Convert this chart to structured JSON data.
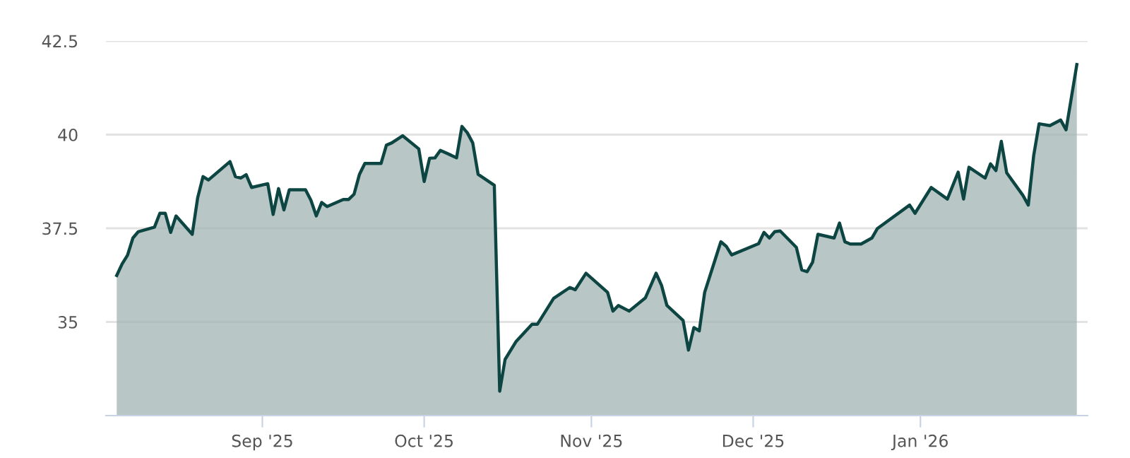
{
  "chart_data": {
    "type": "area",
    "grid": "y",
    "legend": false,
    "marker": "none",
    "line_style": "solid",
    "xlim": [
      "2025-08-03",
      "2026-02-01"
    ],
    "ylim": [
      32.5,
      42.5
    ],
    "xticks": [
      {
        "value": "2025-09-01",
        "label": "Sep '25"
      },
      {
        "value": "2025-10-01",
        "label": "Oct '25"
      },
      {
        "value": "2025-11-01",
        "label": "Nov '25"
      },
      {
        "value": "2025-12-01",
        "label": "Dec '25"
      },
      {
        "value": "2026-01-01",
        "label": "Jan '26"
      }
    ],
    "yticks": [
      35,
      37.5,
      40,
      42.5
    ],
    "x": [
      "2025-08-05",
      "2025-08-06",
      "2025-08-07",
      "2025-08-08",
      "2025-08-09",
      "2025-08-12",
      "2025-08-13",
      "2025-08-14",
      "2025-08-15",
      "2025-08-16",
      "2025-08-19",
      "2025-08-20",
      "2025-08-21",
      "2025-08-22",
      "2025-08-26",
      "2025-08-27",
      "2025-08-28",
      "2025-08-29",
      "2025-08-30",
      "2025-09-02",
      "2025-09-03",
      "2025-09-04",
      "2025-09-05",
      "2025-09-06",
      "2025-09-09",
      "2025-09-10",
      "2025-09-11",
      "2025-09-12",
      "2025-09-13",
      "2025-09-16",
      "2025-09-17",
      "2025-09-18",
      "2025-09-19",
      "2025-09-20",
      "2025-09-23",
      "2025-09-24",
      "2025-09-25",
      "2025-09-27",
      "2025-09-30",
      "2025-10-01",
      "2025-10-02",
      "2025-10-03",
      "2025-10-04",
      "2025-10-06",
      "2025-10-07",
      "2025-10-08",
      "2025-10-09",
      "2025-10-10",
      "2025-10-11",
      "2025-10-14",
      "2025-10-15",
      "2025-10-16",
      "2025-10-18",
      "2025-10-21",
      "2025-10-22",
      "2025-10-25",
      "2025-10-28",
      "2025-10-29",
      "2025-10-31",
      "2025-11-04",
      "2025-11-05",
      "2025-11-06",
      "2025-11-08",
      "2025-11-11",
      "2025-11-13",
      "2025-11-14",
      "2025-11-15",
      "2025-11-18",
      "2025-11-19",
      "2025-11-20",
      "2025-11-21",
      "2025-11-22",
      "2025-11-25",
      "2025-11-26",
      "2025-11-27",
      "2025-12-02",
      "2025-12-03",
      "2025-12-04",
      "2025-12-05",
      "2025-12-06",
      "2025-12-09",
      "2025-12-10",
      "2025-12-11",
      "2025-12-12",
      "2025-12-13",
      "2025-12-16",
      "2025-12-17",
      "2025-12-18",
      "2025-12-19",
      "2025-12-21",
      "2025-12-23",
      "2025-12-24",
      "2025-12-30",
      "2025-12-31",
      "2026-01-03",
      "2026-01-06",
      "2026-01-08",
      "2026-01-09",
      "2026-01-10",
      "2026-01-13",
      "2026-01-14",
      "2026-01-15",
      "2026-01-16",
      "2026-01-17",
      "2026-01-20",
      "2026-01-21",
      "2026-01-22",
      "2026-01-23",
      "2026-01-25",
      "2026-01-27",
      "2026-01-28",
      "2026-01-30"
    ],
    "series": [
      {
        "color": "#0d4542",
        "values": [
          36.24,
          36.55,
          36.78,
          37.24,
          37.41,
          37.53,
          37.9,
          37.9,
          37.39,
          37.83,
          37.34,
          38.31,
          38.88,
          38.79,
          39.28,
          38.88,
          38.84,
          38.93,
          38.59,
          38.69,
          37.87,
          38.56,
          37.99,
          38.53,
          38.53,
          38.25,
          37.83,
          38.19,
          38.08,
          38.27,
          38.27,
          38.41,
          38.94,
          39.23,
          39.23,
          39.72,
          39.78,
          39.97,
          39.62,
          38.75,
          39.37,
          39.38,
          39.58,
          39.45,
          39.38,
          40.22,
          40.05,
          39.78,
          38.94,
          38.65,
          33.15,
          34.0,
          34.47,
          34.94,
          34.94,
          35.63,
          35.92,
          35.86,
          36.3,
          35.79,
          35.29,
          35.44,
          35.29,
          35.64,
          36.3,
          35.98,
          35.44,
          35.04,
          34.25,
          34.85,
          34.76,
          35.79,
          37.14,
          37.02,
          36.79,
          37.09,
          37.39,
          37.24,
          37.41,
          37.43,
          36.99,
          36.39,
          36.34,
          36.59,
          37.34,
          37.24,
          37.64,
          37.14,
          37.08,
          37.08,
          37.24,
          37.49,
          38.12,
          37.9,
          38.59,
          38.28,
          39.0,
          38.28,
          39.13,
          38.84,
          39.22,
          39.04,
          39.82,
          38.98,
          38.38,
          38.12,
          39.44,
          40.29,
          40.24,
          40.39,
          40.13,
          41.87
        ]
      }
    ]
  }
}
